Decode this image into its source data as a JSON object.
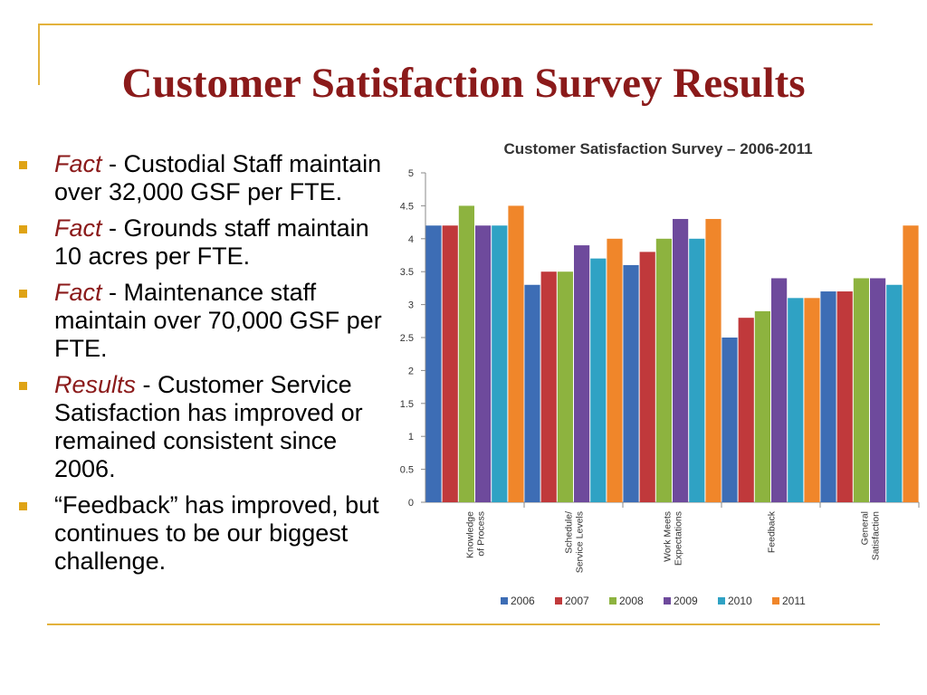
{
  "slide": {
    "title": "Customer Satisfaction Survey Results"
  },
  "bullets": [
    {
      "lead": "Fact",
      "text": " - Custodial Staff maintain over 32,000 GSF per FTE."
    },
    {
      "lead": "Fact",
      "text": " - Grounds staff maintain 10 acres per FTE."
    },
    {
      "lead": "Fact",
      "text": " - Maintenance staff maintain over 70,000 GSF per FTE."
    },
    {
      "lead": "Results",
      "text": " - Customer Service Satisfaction has improved or remained consistent since 2006."
    },
    {
      "lead": "",
      "text": "“Feedback” has improved, but continues to be our biggest challenge."
    }
  ],
  "colors": {
    "title": "#8b1a1a",
    "accent_line": "#e3b23c",
    "bullet_marker": "#dfa315"
  },
  "chart_data": {
    "type": "bar",
    "title": "Customer Satisfaction Survey – 2006-2011",
    "xlabel": "",
    "ylabel": "",
    "ylim": [
      0,
      5
    ],
    "yticks": [
      "0",
      "0.5",
      "1",
      "1.5",
      "2",
      "2.5",
      "3",
      "3.5",
      "4",
      "4.5",
      "5"
    ],
    "grid": false,
    "legend_position": "bottom",
    "categories": [
      [
        "Knowledge",
        "of Process"
      ],
      [
        "Schedule/",
        "Service Levels"
      ],
      [
        "Work Meets",
        "Expectations"
      ],
      [
        "Feedback"
      ],
      [
        "General",
        "Satisfaction"
      ]
    ],
    "series": [
      {
        "name": "2006",
        "color": "#3d6db5",
        "values": [
          4.2,
          3.3,
          3.6,
          2.5,
          3.2
        ]
      },
      {
        "name": "2007",
        "color": "#c0393b",
        "values": [
          4.2,
          3.5,
          3.8,
          2.8,
          3.2
        ]
      },
      {
        "name": "2008",
        "color": "#8db33f",
        "values": [
          4.5,
          3.5,
          4.0,
          2.9,
          3.4
        ]
      },
      {
        "name": "2009",
        "color": "#6e4a9c",
        "values": [
          4.2,
          3.9,
          4.3,
          3.4,
          3.4
        ]
      },
      {
        "name": "2010",
        "color": "#2fa2c4",
        "values": [
          4.2,
          3.7,
          4.0,
          3.1,
          3.3
        ]
      },
      {
        "name": "2011",
        "color": "#f0862a",
        "values": [
          4.5,
          4.0,
          4.3,
          3.1,
          4.2
        ]
      }
    ]
  }
}
